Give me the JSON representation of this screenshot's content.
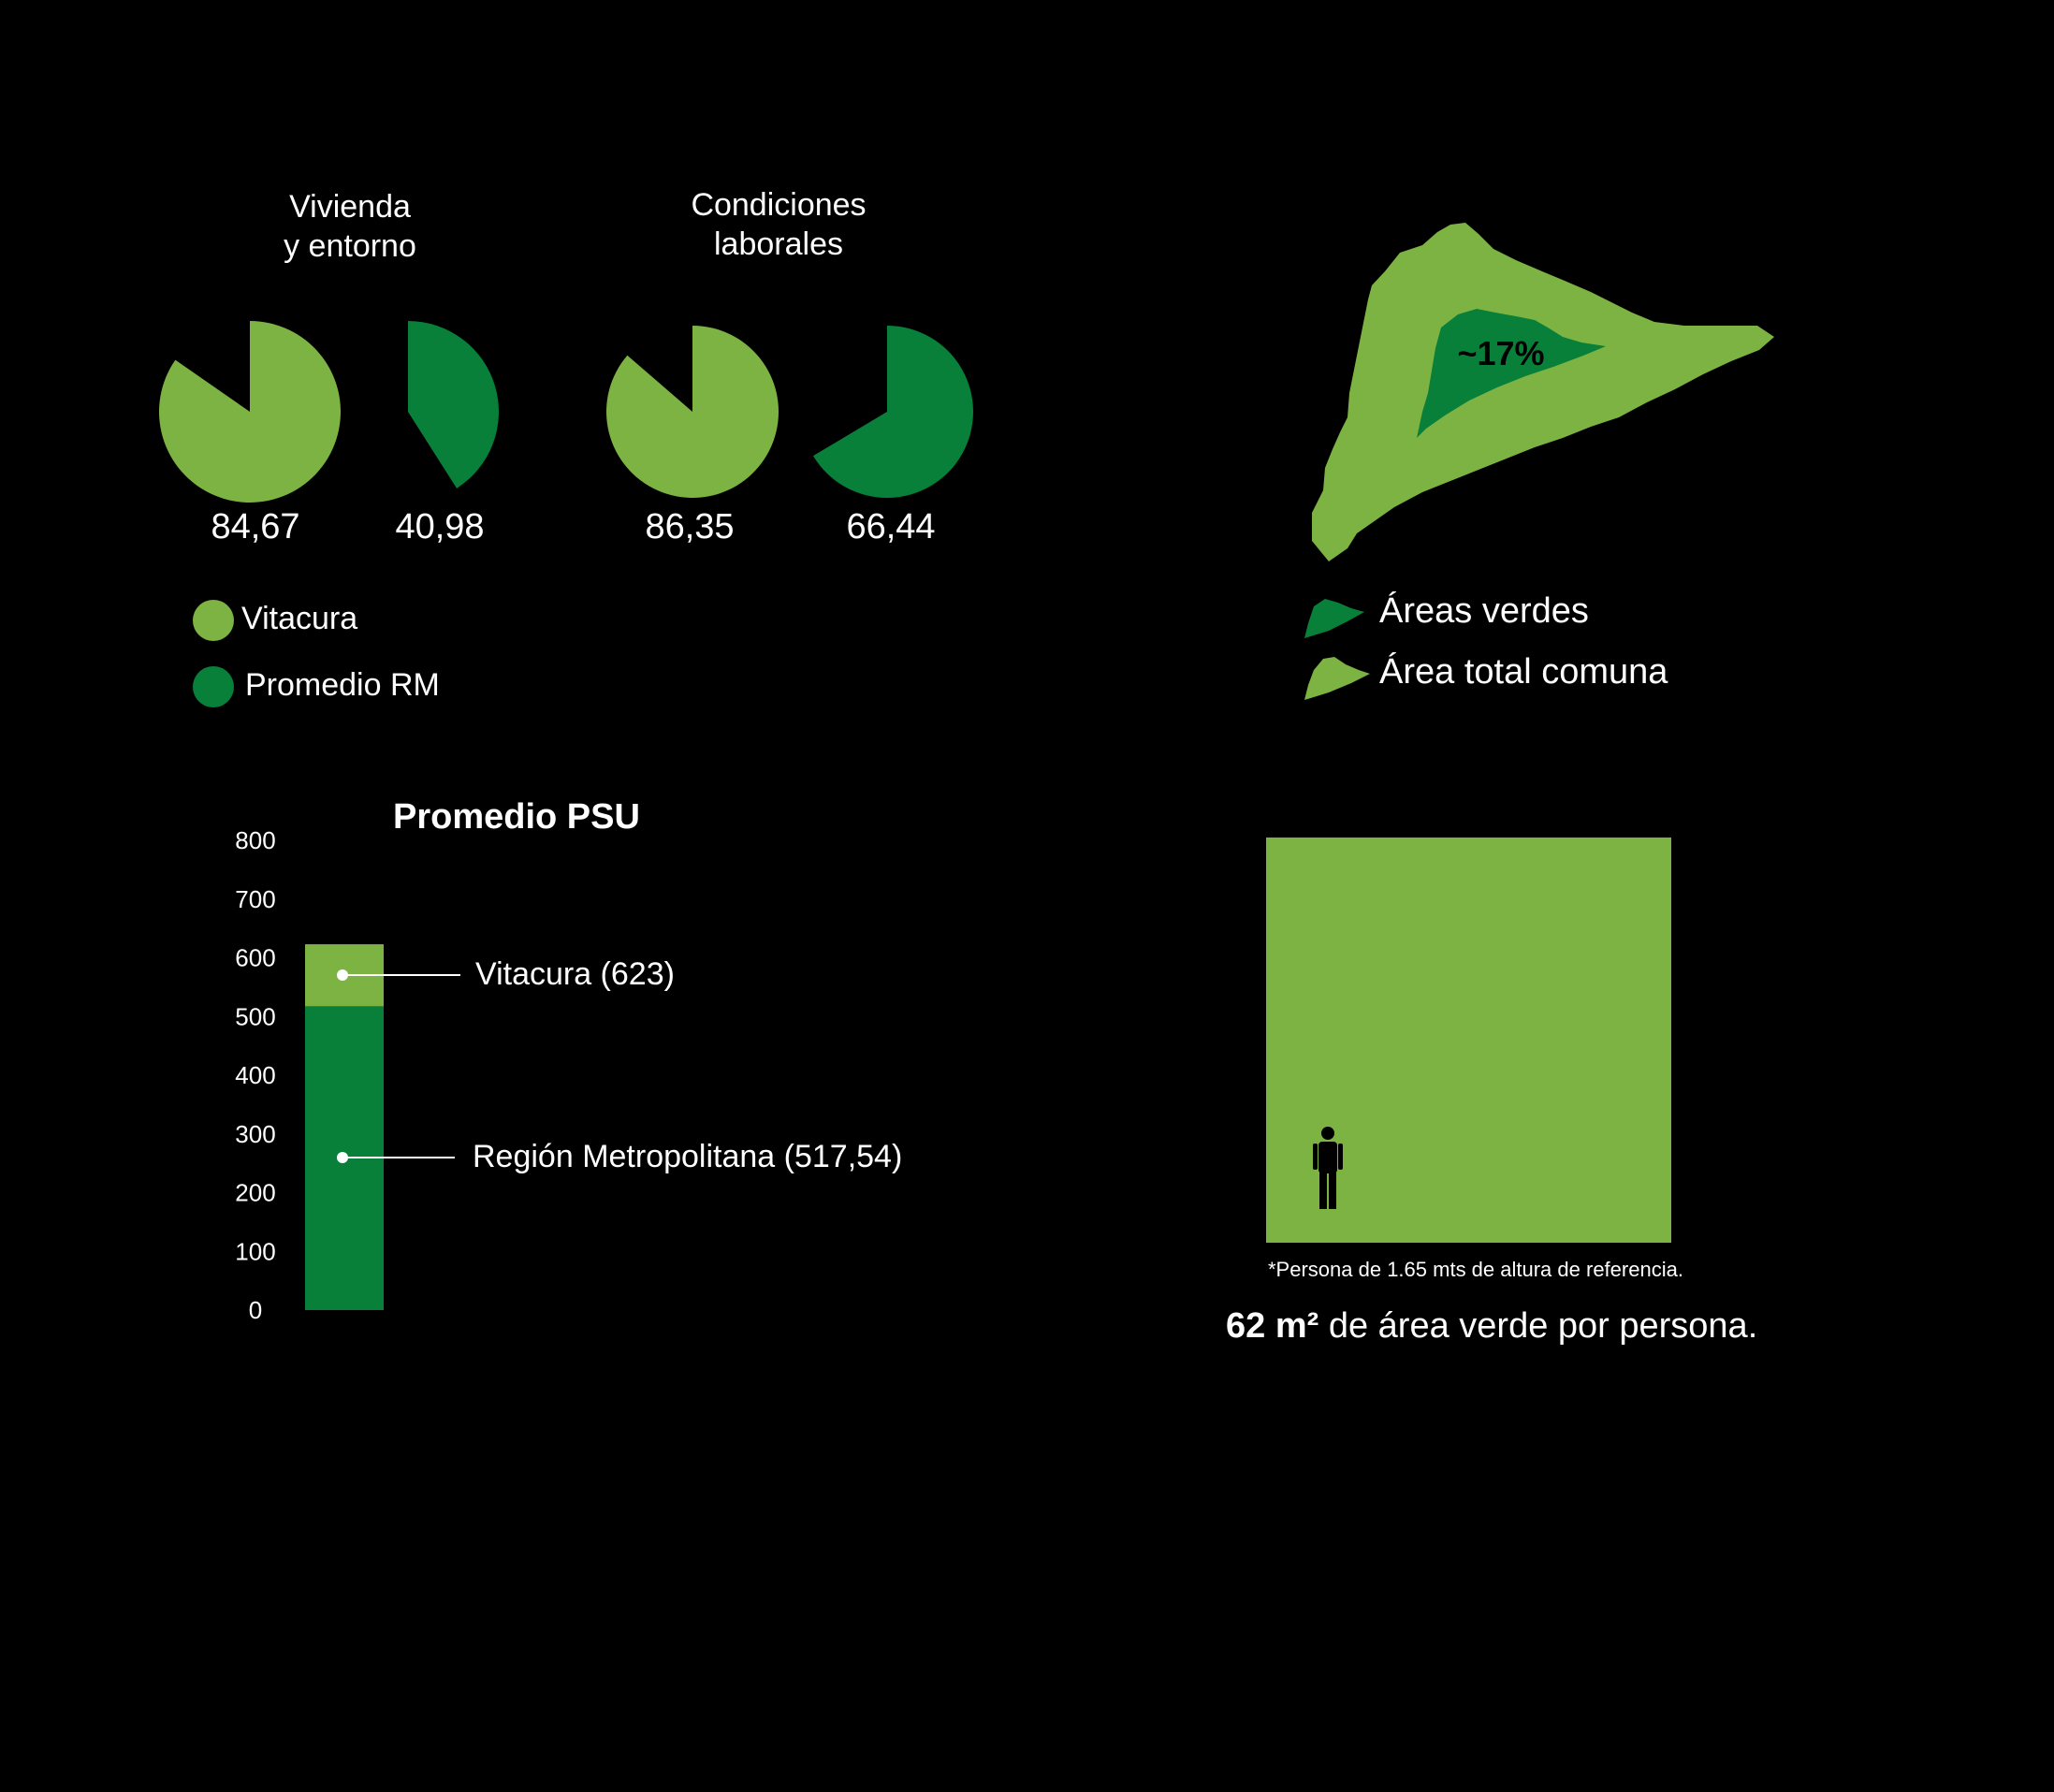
{
  "colors": {
    "background": "#000000",
    "vitacura": "#7cb342",
    "promedio_rm": "#08803a",
    "text": "#ffffff"
  },
  "pies": {
    "groups": [
      {
        "title_line1": "Vivienda",
        "title_line2": "y entorno",
        "vitacura_label": "84,67",
        "rm_label": "40,98"
      },
      {
        "title_line1": "Condiciones",
        "title_line2": "laborales",
        "vitacura_label": "86,35",
        "rm_label": "66,44"
      }
    ],
    "legend": [
      {
        "label": "Vitacura"
      },
      {
        "label": "Promedio RM"
      }
    ]
  },
  "map": {
    "percent_label": "~17%",
    "legend": [
      {
        "label": "Áreas verdes"
      },
      {
        "label": "Área total comuna"
      }
    ]
  },
  "psu": {
    "title": "Promedio PSU",
    "callouts": {
      "vitacura": "Vitacura (623)",
      "rm": "Región Metropolitana (517,54)"
    }
  },
  "area_box": {
    "person_icon": "person-icon",
    "footnote": "*Persona de 1.65 mts de altura de referencia.",
    "note_bold": "62 m²",
    "note_rest": " de área verde por persona."
  },
  "chart_data": [
    {
      "type": "pie",
      "title": "Vivienda y entorno",
      "series": [
        {
          "name": "Vitacura",
          "value": 84.67
        },
        {
          "name": "Promedio RM",
          "value": 40.98
        }
      ],
      "max": 100
    },
    {
      "type": "pie",
      "title": "Condiciones laborales",
      "series": [
        {
          "name": "Vitacura",
          "value": 86.35
        },
        {
          "name": "Promedio RM",
          "value": 66.44
        }
      ],
      "max": 100
    },
    {
      "type": "bar",
      "title": "Promedio PSU",
      "categories": [
        "Promedio PSU"
      ],
      "series": [
        {
          "name": "Vitacura",
          "values": [
            623
          ]
        },
        {
          "name": "Región Metropolitana",
          "values": [
            517.54
          ]
        }
      ],
      "ylim": [
        0,
        800
      ],
      "yticks": [
        "0",
        "100",
        "200",
        "300",
        "400",
        "500",
        "600",
        "700",
        "800"
      ]
    }
  ]
}
